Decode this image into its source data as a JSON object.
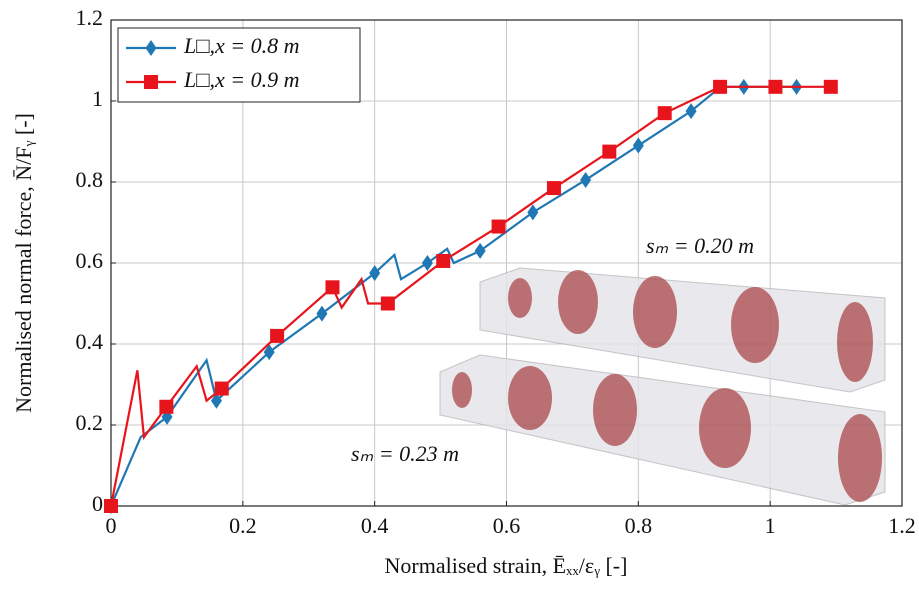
{
  "chart_data": {
    "type": "line",
    "xlabel": "Normalised strain, Ēₓₓ/εᵧ [-]",
    "ylabel": "Normalised normal force, N̄/Fᵧ [-]",
    "xlim": [
      0,
      1.2
    ],
    "ylim": [
      0,
      1.2
    ],
    "xticks": [
      0,
      0.2,
      0.4,
      0.6,
      0.8,
      1,
      1.2
    ],
    "yticks": [
      0,
      0.2,
      0.4,
      0.6,
      0.8,
      1,
      1.2
    ],
    "grid": true,
    "legend": "upper left",
    "series": [
      {
        "name": "L□,x = 0.8 m",
        "color": "#1f77b4",
        "marker": "diamond",
        "x": [
          0,
          0.045,
          0.085,
          0.145,
          0.16,
          0.24,
          0.32,
          0.4,
          0.43,
          0.44,
          0.48,
          0.51,
          0.52,
          0.56,
          0.64,
          0.72,
          0.8,
          0.88,
          0.925,
          0.96,
          1.04
        ],
        "values": [
          0,
          0.17,
          0.22,
          0.36,
          0.26,
          0.38,
          0.475,
          0.575,
          0.62,
          0.56,
          0.6,
          0.635,
          0.6,
          0.63,
          0.725,
          0.805,
          0.89,
          0.975,
          1.035,
          1.035,
          1.035
        ],
        "markers": [
          true,
          false,
          true,
          false,
          true,
          true,
          true,
          true,
          false,
          false,
          true,
          false,
          false,
          true,
          true,
          true,
          true,
          true,
          false,
          true,
          true
        ]
      },
      {
        "name": "L□,x = 0.9 m",
        "color": "#e8141c",
        "marker": "square",
        "x": [
          0,
          0.04,
          0.05,
          0.084,
          0.13,
          0.145,
          0.168,
          0.252,
          0.336,
          0.35,
          0.38,
          0.39,
          0.42,
          0.504,
          0.588,
          0.672,
          0.756,
          0.84,
          0.924,
          1.008,
          1.092
        ],
        "values": [
          0,
          0.335,
          0.17,
          0.245,
          0.345,
          0.26,
          0.29,
          0.42,
          0.54,
          0.49,
          0.56,
          0.5,
          0.5,
          0.605,
          0.69,
          0.785,
          0.875,
          0.97,
          1.035,
          1.035,
          1.035
        ],
        "markers": [
          true,
          false,
          false,
          true,
          false,
          false,
          true,
          true,
          true,
          false,
          false,
          false,
          true,
          true,
          true,
          true,
          true,
          true,
          true,
          true,
          true
        ]
      }
    ],
    "annotations": [
      "sₘ = 0.20 m",
      "sₘ = 0.23 m"
    ]
  }
}
